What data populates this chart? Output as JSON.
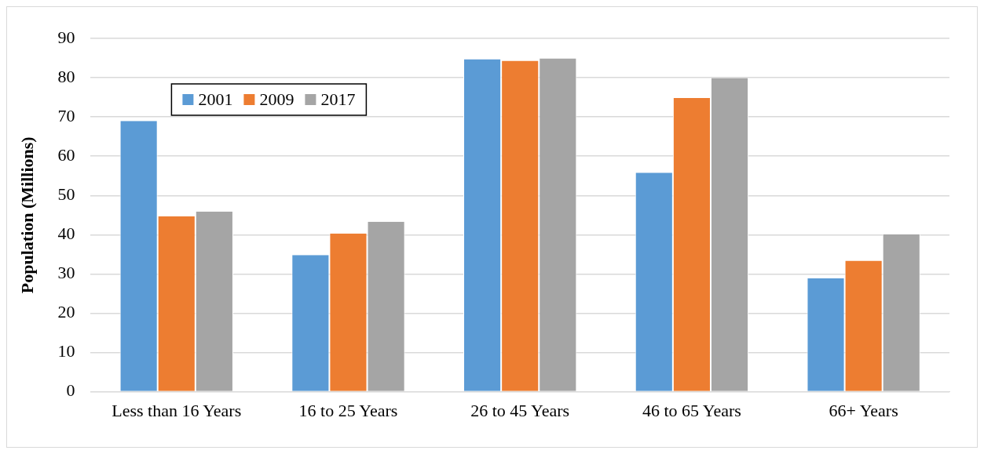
{
  "chart_data": {
    "type": "bar",
    "ylabel": "Population (Millions)",
    "categories": [
      "Less than 16 Years",
      "16 to 25 Years",
      "26 to 45 Years",
      "46 to 65 Years",
      "66+ Years"
    ],
    "series": [
      {
        "name": "2001",
        "color": "#5b9bd5",
        "values": [
          69.0,
          34.8,
          84.7,
          55.8,
          28.9
        ]
      },
      {
        "name": "2009",
        "color": "#ed7d31",
        "values": [
          44.7,
          40.3,
          84.3,
          74.8,
          33.4
        ]
      },
      {
        "name": "2017",
        "color": "#a5a5a5",
        "values": [
          45.9,
          43.3,
          84.9,
          79.9,
          40.1
        ]
      }
    ],
    "ylim": [
      0,
      90
    ],
    "yticks": [
      0,
      10,
      20,
      30,
      40,
      50,
      60,
      70,
      80,
      90
    ],
    "grid": "y",
    "legend": "top left"
  }
}
